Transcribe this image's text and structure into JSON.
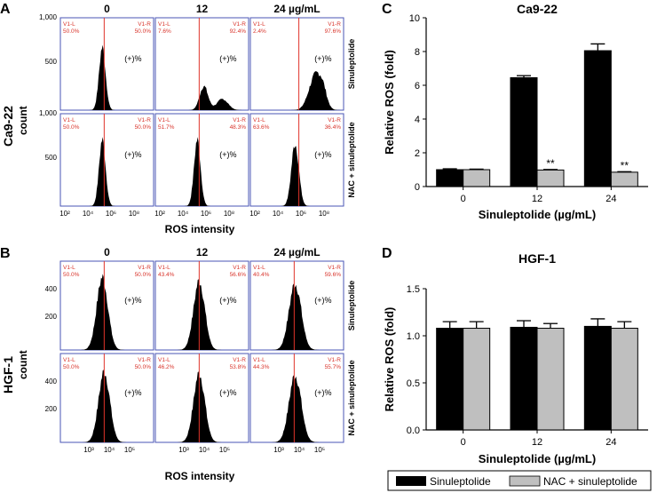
{
  "figure": {
    "panel_a": {
      "letter": "A",
      "cell_line": "Ca9-22",
      "count_label": "count",
      "col_headers": [
        "0",
        "12",
        "24 µg/mL"
      ],
      "row_labels": [
        "Sinuleptolide",
        "NAC + sinuleptolide"
      ],
      "y_ticks": [
        "1,000",
        "500"
      ],
      "x_ticks": [
        "10²",
        "10⁴",
        "10⁶",
        "10⁸"
      ],
      "xlabel": "ROS intensity",
      "gate_left": "V1-L",
      "gate_right": "V1-R",
      "pos_label": "(+)%",
      "pct_left": [
        [
          "50.0%",
          "7.6%",
          "2.4%"
        ],
        [
          "50.0%",
          "51.7%",
          "63.6%"
        ]
      ],
      "pct_right": [
        [
          "50.0%",
          "92.4%",
          "97.6%"
        ],
        [
          "50.0%",
          "48.3%",
          "36.4%"
        ]
      ]
    },
    "panel_b": {
      "letter": "B",
      "cell_line": "HGF-1",
      "count_label": "count",
      "col_headers": [
        "0",
        "12",
        "24 µg/mL"
      ],
      "row_labels": [
        "Sinuleptolide",
        "NAC + sinuleptolide"
      ],
      "y_ticks": [
        "400",
        "200"
      ],
      "x_ticks": [
        "10³",
        "10⁴",
        "10⁵"
      ],
      "xlabel": "ROS intensity",
      "gate_left": "V1-L",
      "gate_right": "V1-R",
      "pos_label": "(+)%",
      "pct_left": [
        [
          "50.0%",
          "43.4%",
          "40.4%"
        ],
        [
          "50.0%",
          "46.2%",
          "44.3%"
        ]
      ],
      "pct_right": [
        [
          "50.0%",
          "56.6%",
          "59.6%"
        ],
        [
          "50.0%",
          "53.8%",
          "55.7%"
        ]
      ]
    },
    "panel_c_letter": "C",
    "panel_d_letter": "D",
    "legend": {
      "items": [
        "Sinuleptolide",
        "NAC + sinuleptolide"
      ]
    }
  },
  "chart_data": [
    {
      "type": "bar",
      "title": "Ca9-22",
      "xlabel": "Sinuleptolide (µg/mL)",
      "ylabel": "Relative ROS (fold)",
      "categories": [
        "0",
        "12",
        "24"
      ],
      "ylim": [
        0,
        10
      ],
      "yticks": [
        0,
        2,
        4,
        6,
        8,
        10
      ],
      "ytick_labels": [
        "0",
        "2",
        "4",
        "6",
        "8",
        "10"
      ],
      "series": [
        {
          "name": "Sinuleptolide",
          "color": "#000000",
          "values": [
            1.0,
            6.45,
            8.05
          ],
          "errors": [
            0.05,
            0.12,
            0.4
          ]
        },
        {
          "name": "NAC + sinuleptolide",
          "color": "#bfbfbf",
          "values": [
            1.0,
            0.98,
            0.85
          ],
          "errors": [
            0.03,
            0.03,
            0.03
          ]
        }
      ],
      "annotations": [
        {
          "category": "12",
          "series": "NAC + sinuleptolide",
          "text": "**"
        },
        {
          "category": "24",
          "series": "NAC + sinuleptolide",
          "text": "**"
        }
      ]
    },
    {
      "type": "bar",
      "title": "HGF-1",
      "xlabel": "Sinuleptolide (µg/mL)",
      "ylabel": "Relative ROS (fold)",
      "categories": [
        "0",
        "12",
        "24"
      ],
      "ylim": [
        0,
        1.5
      ],
      "yticks": [
        0,
        0.5,
        1.0,
        1.5
      ],
      "ytick_labels": [
        "0.0",
        "0.5",
        "1.0",
        "1.5"
      ],
      "series": [
        {
          "name": "Sinuleptolide",
          "color": "#000000",
          "values": [
            1.08,
            1.09,
            1.1
          ],
          "errors": [
            0.07,
            0.07,
            0.08
          ]
        },
        {
          "name": "NAC + sinuleptolide",
          "color": "#bfbfbf",
          "values": [
            1.08,
            1.08,
            1.08
          ],
          "errors": [
            0.07,
            0.05,
            0.07
          ]
        }
      ],
      "annotations": []
    }
  ]
}
